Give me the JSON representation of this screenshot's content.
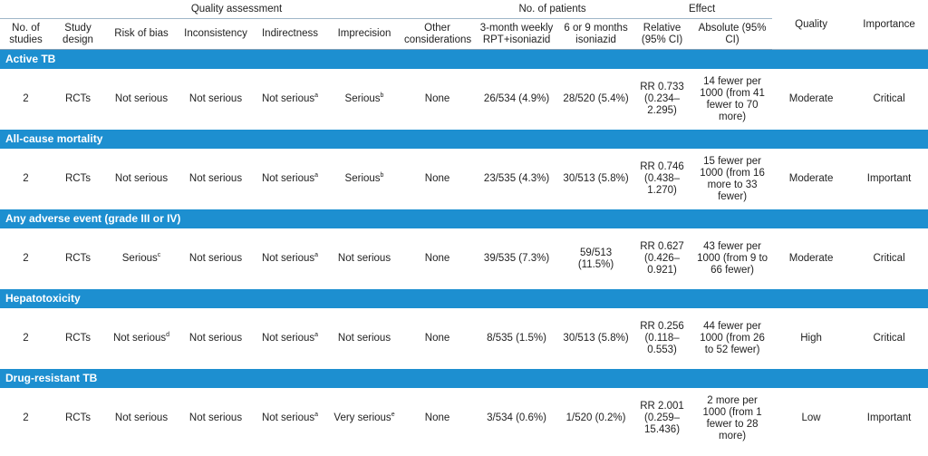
{
  "header": {
    "groups": {
      "quality_assessment": "Quality assessment",
      "no_of_patients": "No. of patients",
      "effect": "Effect"
    },
    "quality": "Quality",
    "importance": "Importance",
    "columns": {
      "no_of_studies": "No. of studies",
      "study_design": "Study design",
      "risk_of_bias": "Risk of bias",
      "inconsistency": "Inconsistency",
      "indirectness": "Indirectness",
      "imprecision": "Imprecision",
      "other_considerations": "Other considerations",
      "rpt": "3-month weekly RPT+isoniazid",
      "isoniazid": "6 or 9 months isoniazid",
      "relative": "Relative (95% CI)",
      "absolute": "Absolute (95% CI)"
    }
  },
  "outcomes": [
    {
      "title": "Active TB",
      "studies": "2",
      "design": "RCTs",
      "risk_of_bias": "Not serious",
      "risk_sup": "",
      "inconsistency": "Not serious",
      "indirectness": "Not serious",
      "indirectness_sup": "a",
      "imprecision": "Serious",
      "imprecision_sup": "b",
      "other": "None",
      "rpt": "26/534 (4.9%)",
      "iso": "28/520 (5.4%)",
      "relative": "RR 0.733 (0.234–2.295)",
      "absolute": "14 fewer per 1000 (from 41 fewer to 70 more)",
      "quality": "Moderate",
      "importance": "Critical"
    },
    {
      "title": "All-cause mortality",
      "studies": "2",
      "design": "RCTs",
      "risk_of_bias": "Not serious",
      "risk_sup": "",
      "inconsistency": "Not serious",
      "indirectness": "Not serious",
      "indirectness_sup": "a",
      "imprecision": "Serious",
      "imprecision_sup": "b",
      "other": "None",
      "rpt": "23/535 (4.3%)",
      "iso": "30/513 (5.8%)",
      "relative": "RR 0.746 (0.438–1.270)",
      "absolute": "15 fewer per 1000 (from 16 more to 33 fewer)",
      "quality": "Moderate",
      "importance": "Important"
    },
    {
      "title": "Any adverse event (grade III or IV)",
      "studies": "2",
      "design": "RCTs",
      "risk_of_bias": "Serious",
      "risk_sup": "c",
      "inconsistency": "Not serious",
      "indirectness": "Not serious",
      "indirectness_sup": "a",
      "imprecision": "Not serious",
      "imprecision_sup": "",
      "other": "None",
      "rpt": "39/535 (7.3%)",
      "iso": "59/513 (11.5%)",
      "relative": "RR 0.627 (0.426–0.921)",
      "absolute": "43 fewer per 1000 (from 9 to 66 fewer)",
      "quality": "Moderate",
      "importance": "Critical"
    },
    {
      "title": "Hepatotoxicity",
      "studies": "2",
      "design": "RCTs",
      "risk_of_bias": "Not serious",
      "risk_sup": "d",
      "inconsistency": "Not serious",
      "indirectness": "Not serious",
      "indirectness_sup": "a",
      "imprecision": "Not serious",
      "imprecision_sup": "",
      "other": "None",
      "rpt": "8/535 (1.5%)",
      "iso": "30/513 (5.8%)",
      "relative": "RR 0.256 (0.118–0.553)",
      "absolute": "44 fewer per 1000 (from 26 to 52 fewer)",
      "quality": "High",
      "importance": "Critical"
    },
    {
      "title": "Drug-resistant TB",
      "studies": "2",
      "design": "RCTs",
      "risk_of_bias": "Not serious",
      "risk_sup": "",
      "inconsistency": "Not serious",
      "indirectness": "Not serious",
      "indirectness_sup": "a",
      "imprecision": "Very serious",
      "imprecision_sup": "e",
      "other": "None",
      "rpt": "3/534 (0.6%)",
      "iso": "1/520 (0.2%)",
      "relative": "RR 2.001 (0.259–15.436)",
      "absolute": "2 more per 1000 (from 1 fewer to 28 more)",
      "quality": "Low",
      "importance": "Important"
    }
  ]
}
